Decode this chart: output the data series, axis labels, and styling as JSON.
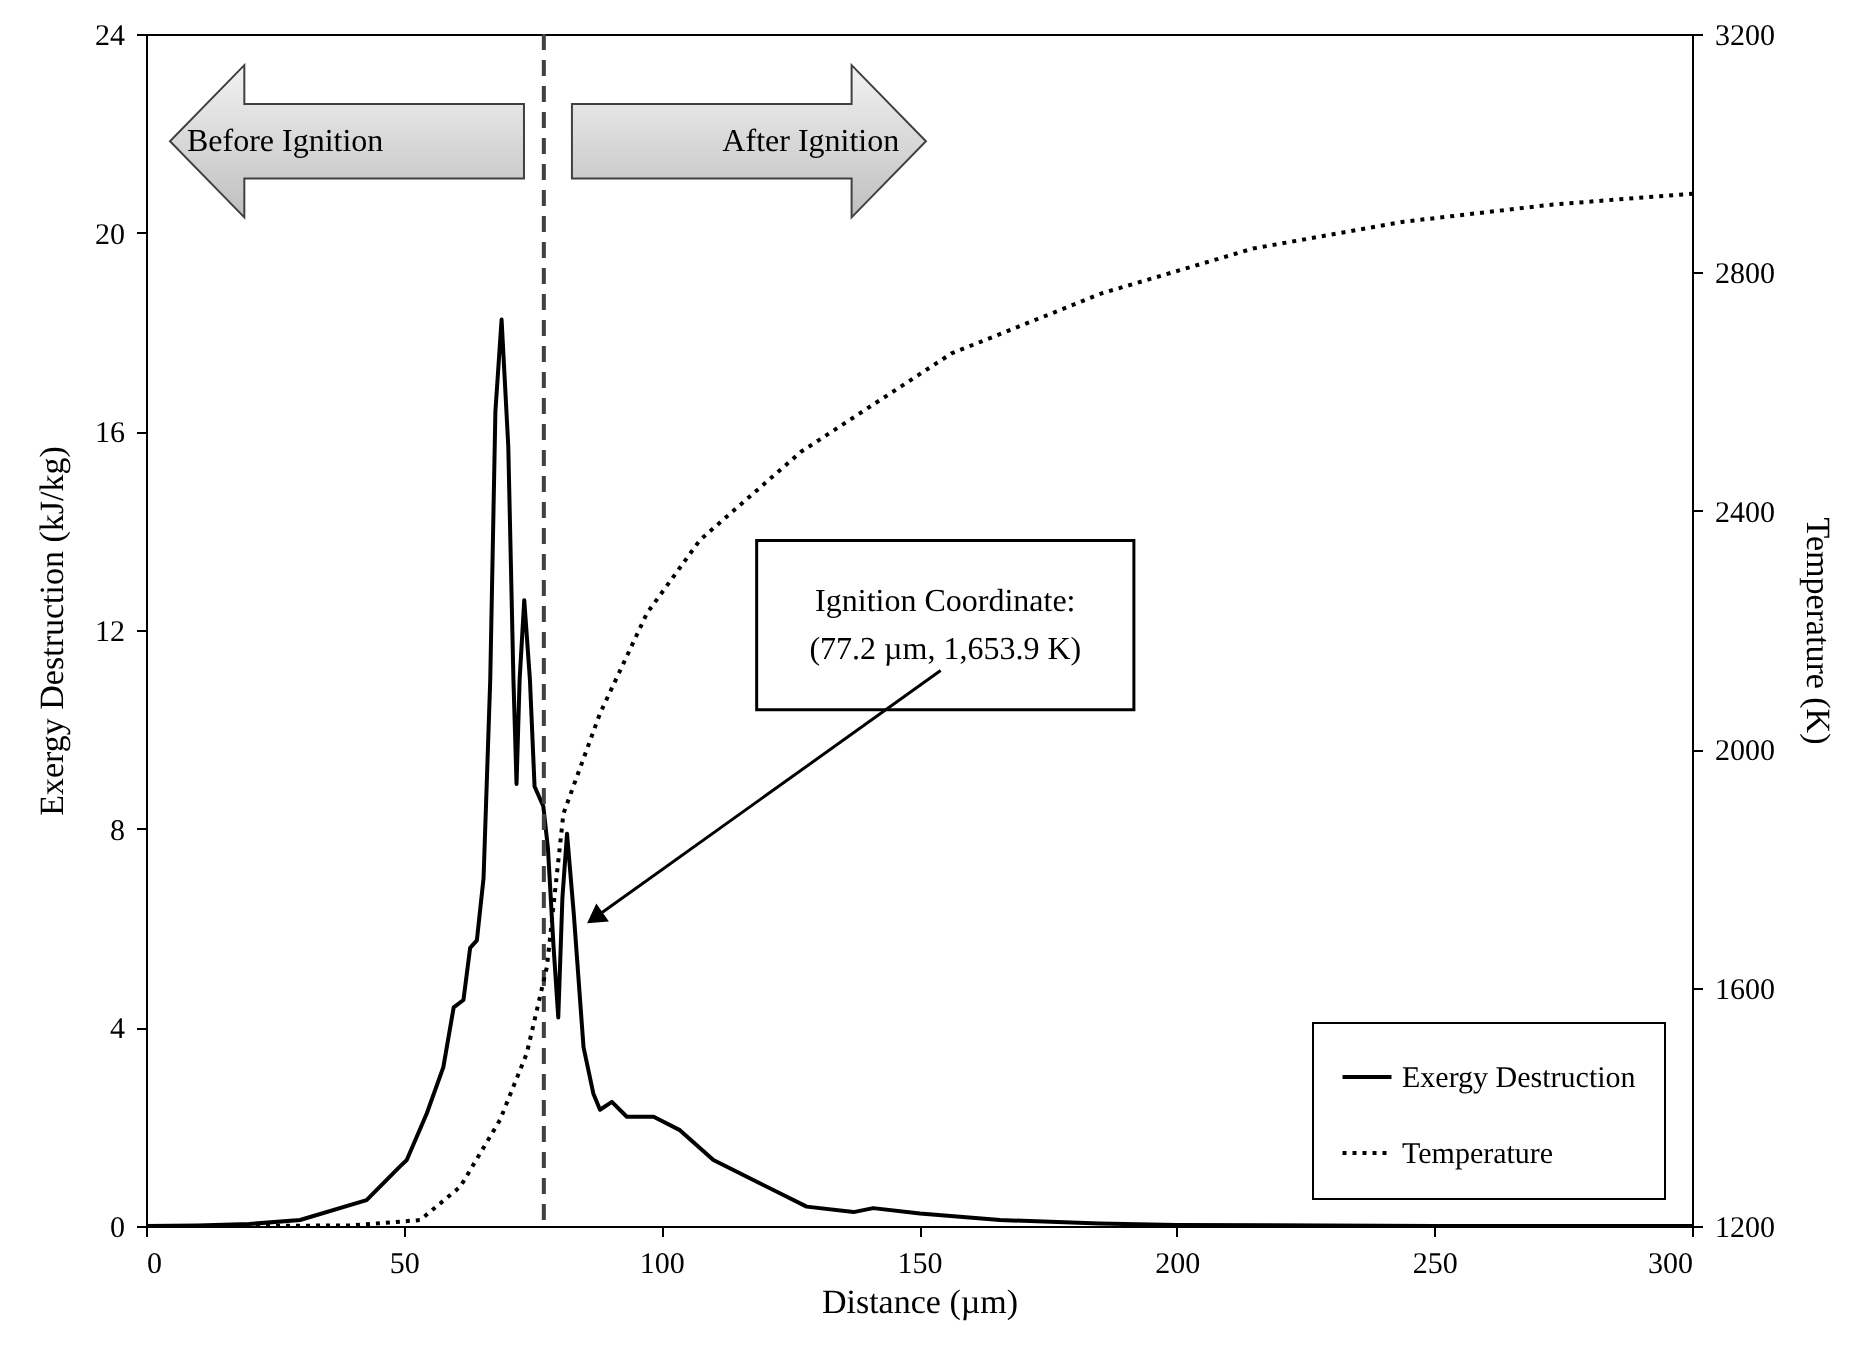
{
  "chart_data": {
    "type": "line",
    "xlabel": "Distance (µm)",
    "ylabel": "Exergy Destruction (kJ/kg)",
    "y2label": "Temperature (K)",
    "series": [
      {
        "name": "Exergy Destruction",
        "color": "#000000",
        "line_style": "solid",
        "x": [
          0,
          10,
          20,
          29.9,
          42.8,
          49.3,
          50.6,
          54.5,
          57.7,
          59.7,
          61.6,
          62.9,
          64.2,
          65.5,
          66.8,
          67.8,
          69.0,
          70.3,
          71.3,
          71.9,
          72.5,
          73.4,
          74.5,
          75.4,
          77.1,
          78.0,
          79.1,
          80.0,
          80.8,
          81.7,
          83.0,
          84.9,
          86.8,
          88.1,
          90.4,
          93.3,
          98.5,
          103.6,
          110.1,
          119.1,
          123,
          128.2,
          137.3,
          141.1,
          150.2,
          165.7,
          185,
          200,
          250,
          300
        ],
        "values": [
          0,
          0.01,
          0.04,
          0.12,
          0.52,
          1.2,
          1.33,
          2.27,
          3.2,
          4.4,
          4.55,
          5.6,
          5.75,
          7.0,
          11.0,
          16.4,
          18.25,
          15.7,
          11.0,
          8.9,
          11.0,
          12.6,
          11.0,
          8.85,
          8.45,
          7.6,
          5.6,
          4.2,
          6.6,
          7.9,
          6.3,
          3.6,
          2.67,
          2.34,
          2.5,
          2.2,
          2.2,
          1.93,
          1.33,
          0.86,
          0.66,
          0.39,
          0.28,
          0.36,
          0.25,
          0.12,
          0.05,
          0.02,
          0,
          0
        ]
      },
      {
        "name": "Temperature",
        "color": "#000000",
        "line_style": "dotted",
        "axis": "y2",
        "x": [
          0,
          20,
          40,
          53.2,
          61,
          68.7,
          73.9,
          77.8,
          81,
          88.1,
          97.2,
          107.5,
          127.1,
          156.3,
          185.5,
          214.8,
          244,
          273.1,
          300
        ],
        "values": [
          1200,
          1200,
          1201,
          1210,
          1266,
          1378,
          1490,
          1635,
          1892,
          2060,
          2228,
          2351,
          2499,
          2664,
          2765,
          2840,
          2885,
          2914,
          2932
        ]
      }
    ],
    "xlim": [
      0,
      300
    ],
    "xticks": [
      0,
      50,
      100,
      150,
      200,
      250,
      300
    ],
    "ylim": [
      0,
      24
    ],
    "yticks": [
      0,
      4,
      8,
      12,
      16,
      20,
      24
    ],
    "y2lim": [
      1200,
      3200
    ],
    "y2ticks": [
      1200,
      1600,
      2000,
      2400,
      2800,
      3200
    ],
    "ref_lines": [
      {
        "axis": "x",
        "value": 77.2,
        "color": "#404040",
        "line_style": "dashed"
      }
    ],
    "annotations": [
      "Before Ignition",
      "After Ignition",
      "Ignition Coordinate:\n(77.2 µm, 1,653.9 K)"
    ],
    "legend": "bottom right",
    "grid": false,
    "marker": "none"
  }
}
